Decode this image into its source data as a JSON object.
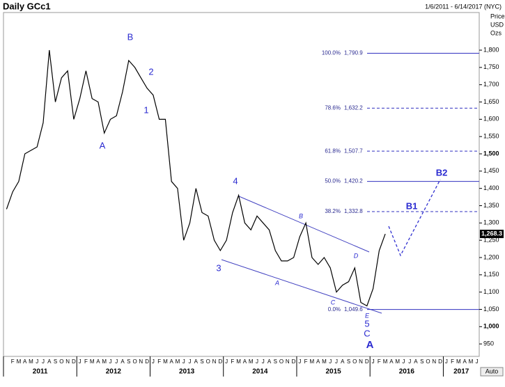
{
  "chart_data": {
    "type": "line",
    "title": "Daily GCc1",
    "date_range": "1/6/2011 - 6/14/2017 (NYC)",
    "axis_unit": [
      "Price",
      "USD",
      "Ozs"
    ],
    "auto_button": "Auto",
    "series": [
      {
        "name": "GCc1",
        "color": "#000000",
        "x": [
          "2011-01",
          "2011-02",
          "2011-03",
          "2011-04",
          "2011-05",
          "2011-06",
          "2011-07",
          "2011-08",
          "2011-09",
          "2011-10",
          "2011-11",
          "2011-12",
          "2012-01",
          "2012-02",
          "2012-03",
          "2012-04",
          "2012-05",
          "2012-06",
          "2012-07",
          "2012-08",
          "2012-09",
          "2012-10",
          "2012-11",
          "2012-12",
          "2013-01",
          "2013-02",
          "2013-03",
          "2013-04",
          "2013-05",
          "2013-06",
          "2013-07",
          "2013-08",
          "2013-09",
          "2013-10",
          "2013-11",
          "2013-12",
          "2014-01",
          "2014-02",
          "2014-03",
          "2014-04",
          "2014-05",
          "2014-06",
          "2014-07",
          "2014-08",
          "2014-09",
          "2014-10",
          "2014-11",
          "2014-12",
          "2015-01",
          "2015-02",
          "2015-03",
          "2015-04",
          "2015-05",
          "2015-06",
          "2015-07",
          "2015-08",
          "2015-09",
          "2015-10",
          "2015-11",
          "2015-12",
          "2016-01",
          "2016-02",
          "2016-03"
        ],
        "values": [
          1340,
          1390,
          1420,
          1500,
          1510,
          1520,
          1590,
          1800,
          1650,
          1720,
          1740,
          1600,
          1660,
          1740,
          1660,
          1650,
          1560,
          1600,
          1610,
          1680,
          1770,
          1750,
          1720,
          1690,
          1670,
          1600,
          1600,
          1420,
          1400,
          1250,
          1300,
          1400,
          1330,
          1320,
          1250,
          1220,
          1250,
          1330,
          1380,
          1300,
          1280,
          1320,
          1300,
          1280,
          1220,
          1190,
          1190,
          1200,
          1260,
          1300,
          1200,
          1180,
          1200,
          1170,
          1100,
          1120,
          1130,
          1170,
          1070,
          1060,
          1110,
          1220,
          1268.3
        ]
      }
    ],
    "last_price": {
      "value": 1268.3,
      "label": "1,268.3"
    },
    "ylim": [
      914,
      1935
    ],
    "yticks": [
      {
        "value": 950,
        "label": "950"
      },
      {
        "value": 1000,
        "label": "1,000"
      },
      {
        "value": 1050,
        "label": "1,050"
      },
      {
        "value": 1100,
        "label": "1,100"
      },
      {
        "value": 1150,
        "label": "1,150"
      },
      {
        "value": 1200,
        "label": "1,200"
      },
      {
        "value": 1250,
        "label": "1,250"
      },
      {
        "value": 1300,
        "label": "1,300"
      },
      {
        "value": 1350,
        "label": "1,350"
      },
      {
        "value": 1400,
        "label": "1,400"
      },
      {
        "value": 1450,
        "label": "1,450"
      },
      {
        "value": 1500,
        "label": "1,500"
      },
      {
        "value": 1550,
        "label": "1,550"
      },
      {
        "value": 1600,
        "label": "1,600"
      },
      {
        "value": 1650,
        "label": "1,650"
      },
      {
        "value": 1700,
        "label": "1,700"
      },
      {
        "value": 1750,
        "label": "1,750"
      },
      {
        "value": 1800,
        "label": "1,800"
      }
    ],
    "bold_ticks": [
      1000,
      1500
    ],
    "month_labels": [
      null,
      "F",
      "M",
      "A",
      "M",
      "J",
      "J",
      "A",
      "S",
      "O",
      "N",
      "D",
      "J",
      "F",
      "M",
      "A",
      "M",
      "J",
      "J",
      "A",
      "S",
      "O",
      "N",
      "D",
      "J",
      "F",
      "M",
      "A",
      "M",
      "J",
      "J",
      "A",
      "S",
      "O",
      "N",
      "D",
      "J",
      "F",
      "M",
      "A",
      "M",
      "J",
      "J",
      "A",
      "S",
      "O",
      "N",
      "D",
      "J",
      "F",
      "M",
      "A",
      "M",
      "J",
      "J",
      "A",
      "S",
      "O",
      "N",
      "D",
      "J",
      "F",
      "M",
      "A",
      "M",
      "J",
      "J",
      "A",
      "S",
      "O",
      "N",
      "D",
      "J",
      "F",
      "M",
      "A",
      "M",
      "J"
    ],
    "years": [
      "2011",
      "2012",
      "2013",
      "2014",
      "2015",
      "2016",
      "2017"
    ],
    "fib_levels": [
      {
        "pct": "100.0%",
        "value": 1790.9,
        "label": "1,790.9",
        "dashed": false
      },
      {
        "pct": "78.6%",
        "value": 1632.2,
        "label": "1,632.2",
        "dashed": true
      },
      {
        "pct": "61.8%",
        "value": 1507.7,
        "label": "1,507.7",
        "dashed": true
      },
      {
        "pct": "50.0%",
        "value": 1420.2,
        "label": "1,420.2",
        "dashed": false
      },
      {
        "pct": "38.2%",
        "value": 1332.8,
        "label": "1,332.8",
        "dashed": true
      },
      {
        "pct": "0.0%",
        "value": 1049.6,
        "label": "1,049.6",
        "dashed": false
      }
    ],
    "wave_labels": [
      "A",
      "B",
      "2",
      "1",
      "4",
      "3",
      "A",
      "B",
      "C",
      "D",
      "E",
      "5",
      "C",
      "A",
      "B1",
      "B2"
    ]
  }
}
